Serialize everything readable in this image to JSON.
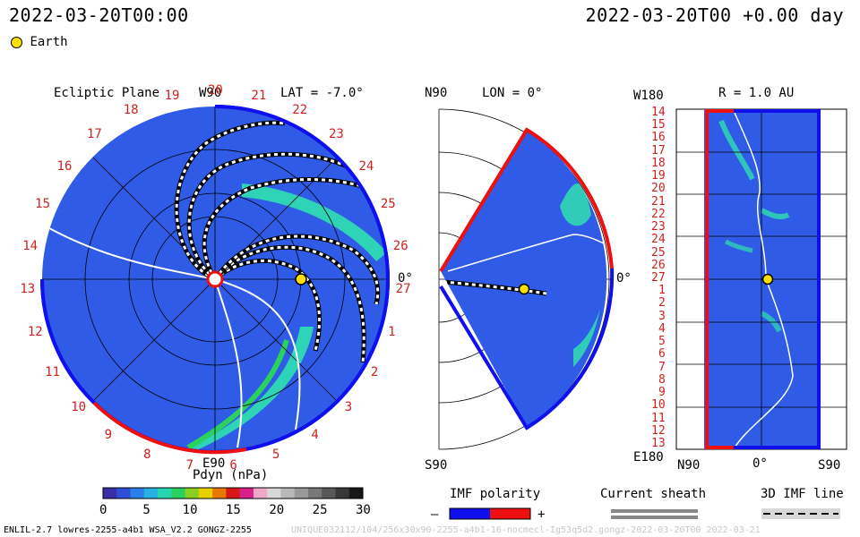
{
  "header": {
    "timestamp_left": "2022-03-20T00:00",
    "timestamp_right": "2022-03-20T00 +0.00 day",
    "legend_earth": "Earth"
  },
  "ecliptic_panel": {
    "title": "Ecliptic Plane",
    "lat_label": "LAT = -7.0°",
    "top_label": "W90",
    "bottom_label": "E90",
    "right_label": "0°",
    "carrington_numbers": [
      "20",
      "21",
      "22",
      "23",
      "24",
      "25",
      "26",
      "27",
      "1",
      "2",
      "3",
      "4",
      "5",
      "6",
      "7",
      "8",
      "9",
      "10",
      "11",
      "12",
      "13",
      "14",
      "15",
      "16",
      "17",
      "18",
      "19"
    ]
  },
  "meridional_panel": {
    "top_left_label": "N90",
    "lon_label": "LON = 0°",
    "bottom_label": "S90",
    "right_label": "0°"
  },
  "r_panel": {
    "top_left_label": "W180",
    "title": "R = 1.0 AU",
    "bottom_left_label": "E180",
    "x_labels": [
      "N90",
      "0°",
      "S90"
    ],
    "y_labels": [
      "14",
      "15",
      "16",
      "17",
      "18",
      "19",
      "20",
      "21",
      "22",
      "23",
      "24",
      "25",
      "26",
      "27",
      "1",
      "2",
      "3",
      "4",
      "5",
      "6",
      "7",
      "8",
      "9",
      "10",
      "11",
      "12",
      "13"
    ]
  },
  "colorbar": {
    "title": "Pdyn (nPa)",
    "ticks": [
      "0",
      "5",
      "10",
      "15",
      "20",
      "25",
      "30"
    ],
    "colors": [
      "#3a2ea6",
      "#2f4fd8",
      "#2a7fe8",
      "#28b0e0",
      "#27d6b0",
      "#2ad060",
      "#8ad020",
      "#e8d000",
      "#e87800",
      "#d81818",
      "#d8208a",
      "#f0a8c8",
      "#d8d8d8",
      "#b8b8b8",
      "#989898",
      "#787878",
      "#585858",
      "#383838",
      "#181818"
    ]
  },
  "imf_legend": {
    "title": "IMF polarity",
    "minus": "–",
    "plus": "+",
    "neg_color": "#1010ee",
    "pos_color": "#ee1010"
  },
  "sheath_legend": {
    "title": "Current sheath"
  },
  "imf_line_legend": {
    "title": "3D IMF line"
  },
  "footer": {
    "left": "ENLIL-2.7 lowres-2255-a4b1 WSA_V2.2 GONGZ-2255",
    "right": "UNIQUE032112/104/256x30x90-2255-a4b1-16-nocmecl-Ig53q5d2.gongz-2022-03-20T00 2022-03-21"
  },
  "colors": {
    "background_field": "#2f5be6",
    "enhanced_stream": "#30e0b0",
    "ecliptic_rim_blue": "#1010ee",
    "ecliptic_rim_red": "#ee1010",
    "tick_red": "#d02020",
    "earth": "#ffe000"
  }
}
